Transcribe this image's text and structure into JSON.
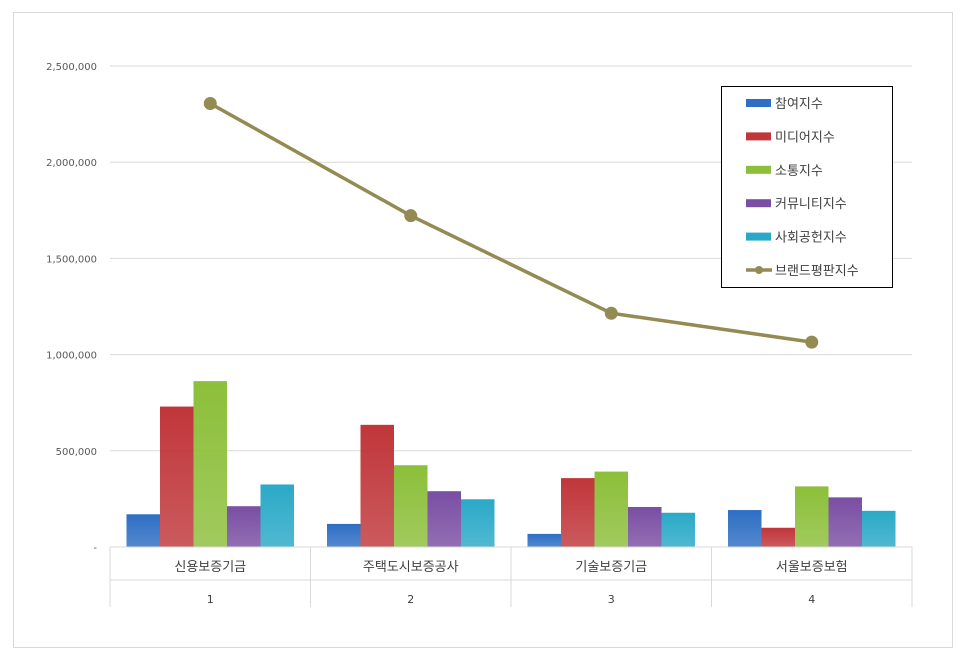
{
  "chart_data": {
    "type": "bar",
    "categories": [
      "신용보증기금",
      "주택도시보증공사",
      "기술보증기금",
      "서울보증보험"
    ],
    "category_numbers": [
      "1",
      "2",
      "3",
      "4"
    ],
    "ylim": [
      0,
      2500000
    ],
    "yticks": [
      {
        "value": 0,
        "label": "-"
      },
      {
        "value": 500000,
        "label": "500,000"
      },
      {
        "value": 1000000,
        "label": "1,000,000"
      },
      {
        "value": 1500000,
        "label": "1,500,000"
      },
      {
        "value": 2000000,
        "label": "2,000,000"
      },
      {
        "value": 2500000,
        "label": "2,500,000"
      }
    ],
    "grid": true,
    "legend_position": "top-right",
    "series": [
      {
        "name": "참여지수",
        "type": "bar",
        "color": "#2e6ec4",
        "values": [
          170000,
          120000,
          68000,
          192000
        ]
      },
      {
        "name": "미디어지수",
        "type": "bar",
        "color": "#c0363a",
        "values": [
          730000,
          635000,
          358000,
          100000
        ]
      },
      {
        "name": "소통지수",
        "type": "bar",
        "color": "#8cbf3a",
        "values": [
          862000,
          425000,
          392000,
          315000
        ]
      },
      {
        "name": "커뮤니티지수",
        "type": "bar",
        "color": "#7a4ea3",
        "values": [
          212000,
          290000,
          208000,
          258000
        ]
      },
      {
        "name": "사회공헌지수",
        "type": "bar",
        "color": "#2aa9c7",
        "values": [
          325000,
          248000,
          178000,
          188000
        ]
      },
      {
        "name": "브랜드평판지수",
        "type": "line",
        "color": "#948a54",
        "values": [
          2305000,
          1722000,
          1215000,
          1065000
        ]
      }
    ]
  }
}
